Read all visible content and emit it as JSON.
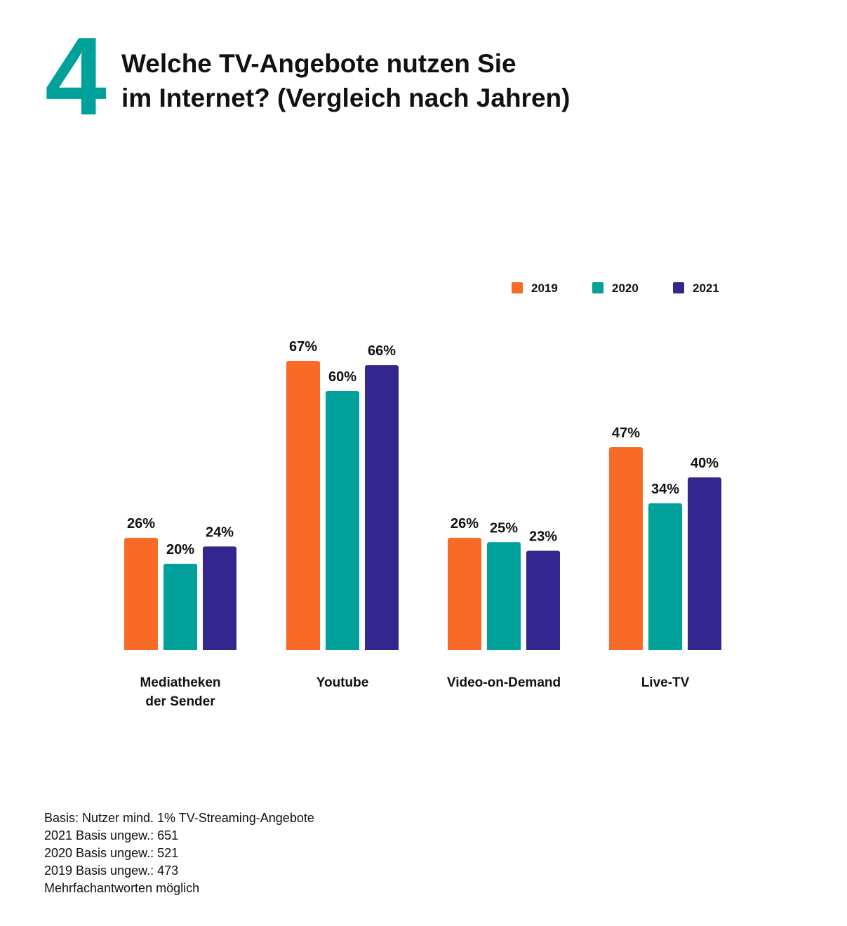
{
  "header": {
    "number": "4",
    "title_line1": "Welche TV-Angebote nutzen Sie",
    "title_line2": "im Internet? (Vergleich nach Jahren)"
  },
  "colors": {
    "accent": "#00A19A",
    "series_2019": "#F96A27",
    "series_2020": "#00A19A",
    "series_2021": "#33268E"
  },
  "chart_data": {
    "type": "bar",
    "title": "Welche TV-Angebote nutzen Sie im Internet? (Vergleich nach Jahren)",
    "xlabel": "",
    "ylabel": "",
    "ylim": [
      0,
      70
    ],
    "grid": false,
    "legend_position": "top-right",
    "value_suffix": "%",
    "categories": [
      [
        "Mediatheken",
        "der Sender"
      ],
      [
        "Youtube"
      ],
      [
        "Video-on-Demand"
      ],
      [
        "Live-TV"
      ]
    ],
    "series": [
      {
        "name": "2019",
        "color": "#F96A27",
        "values": [
          26,
          67,
          26,
          47
        ]
      },
      {
        "name": "2020",
        "color": "#00A19A",
        "values": [
          20,
          60,
          25,
          34
        ]
      },
      {
        "name": "2021",
        "color": "#33268E",
        "values": [
          24,
          66,
          23,
          40
        ]
      }
    ]
  },
  "footnote": {
    "lines": [
      "Basis: Nutzer mind. 1% TV-Streaming-Angebote",
      "2021 Basis ungew.: 651",
      "2020 Basis ungew.: 521",
      "2019 Basis ungew.: 473",
      "Mehrfachantworten möglich"
    ]
  }
}
